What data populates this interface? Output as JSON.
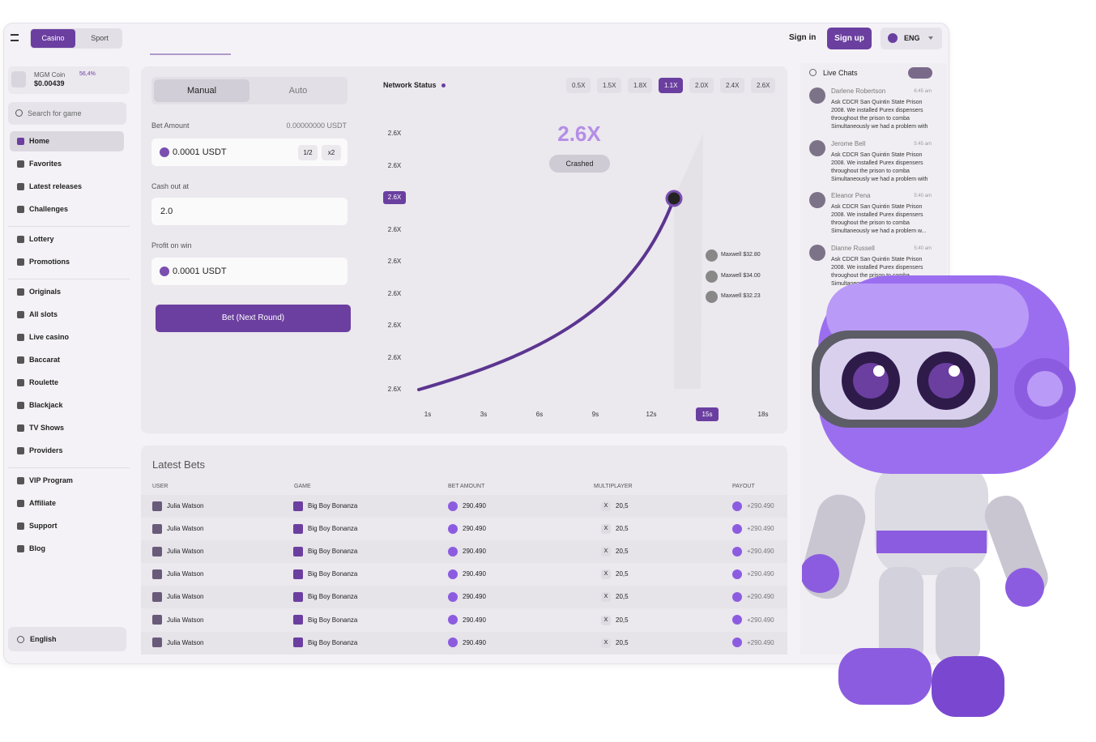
{
  "topbar": {
    "tabs": [
      "Casino",
      "Sport"
    ],
    "sign_in": "Sign in",
    "sign_up": "Sign up",
    "language": "ENG"
  },
  "sidebar": {
    "wallet": {
      "name": "MGM Coin",
      "change": "56,4%",
      "balance": "$0.00439"
    },
    "search_placeholder": "Search for game",
    "nav": [
      [
        "Home",
        "Favorites",
        "Latest releases",
        "Challenges"
      ],
      [
        "Lottery",
        "Promotions"
      ],
      [
        "Originals",
        "All slots",
        "Live casino",
        "Baccarat",
        "Roulette",
        "Blackjack",
        "TV Shows",
        "Providers"
      ],
      [
        "VIP Program",
        "Affiliate",
        "Support",
        "Blog"
      ]
    ],
    "language": "English"
  },
  "bet_form": {
    "tabs": [
      "Manual",
      "Auto"
    ],
    "bet_amount_label": "Bet Amount",
    "balance": "0.00000000 USDT",
    "bet_amount": "0.0001 USDT",
    "half": "1/2",
    "double": "x2",
    "cash_out_label": "Cash out at",
    "cash_out": "2.0",
    "profit_label": "Profit on win",
    "profit": "0.0001 USDT",
    "submit": "Bet (Next Round)"
  },
  "game": {
    "network_status": "Network Status",
    "multipliers": [
      "0.5X",
      "1.5X",
      "1.8X",
      "1.1X",
      "2.0X",
      "2.4X",
      "2.6X"
    ],
    "y_labels": [
      "2.6X",
      "2.6X",
      "2.6X",
      "2.6X",
      "2.6X",
      "2.6X",
      "2.6X",
      "2.6X",
      "2.6X"
    ],
    "x_labels": [
      "1s",
      "3s",
      "6s",
      "9s",
      "12s",
      "15s",
      "18s"
    ],
    "current": "2.6X",
    "status": "Crashed",
    "players": [
      "Maxwell $32.80",
      "Maxwell $34.00",
      "Maxwell $32.23"
    ]
  },
  "latest_bets": {
    "title": "Latest Bets",
    "columns": [
      "USER",
      "GAME",
      "BET AMOUNT",
      "MULTIPLAYER",
      "PAYOUT"
    ],
    "rows": [
      {
        "user": "Julia Watson",
        "game": "Big Boy Bonanza",
        "bet_amount": "290.490",
        "multiplier_badge": "X",
        "multiplier": "20,5",
        "payout": "+290.490"
      },
      {
        "user": "Julia Watson",
        "game": "Big Boy Bonanza",
        "bet_amount": "290.490",
        "multiplier_badge": "X",
        "multiplier": "20,5",
        "payout": "+290.490"
      },
      {
        "user": "Julia Watson",
        "game": "Big Boy Bonanza",
        "bet_amount": "290.490",
        "multiplier_badge": "X",
        "multiplier": "20,5",
        "payout": "+290.490"
      },
      {
        "user": "Julia Watson",
        "game": "Big Boy Bonanza",
        "bet_amount": "290.490",
        "multiplier_badge": "X",
        "multiplier": "20,5",
        "payout": "+290.490"
      },
      {
        "user": "Julia Watson",
        "game": "Big Boy Bonanza",
        "bet_amount": "290.490",
        "multiplier_badge": "X",
        "multiplier": "20,5",
        "payout": "+290.490"
      },
      {
        "user": "Julia Watson",
        "game": "Big Boy Bonanza",
        "bet_amount": "290.490",
        "multiplier_badge": "X",
        "multiplier": "20,5",
        "payout": "+290.490"
      },
      {
        "user": "Julia Watson",
        "game": "Big Boy Bonanza",
        "bet_amount": "290.490",
        "multiplier_badge": "X",
        "multiplier": "20,5",
        "payout": "+290.490"
      }
    ]
  },
  "live_chats": {
    "title": "Live Chats",
    "messages": [
      {
        "name": "Darlene Robertson",
        "time": "6:45 am",
        "text": "Ask CDCR San Quintin State Prison 2008. We installed Purex dispensers throughout the prison to comba Simultaneously we had a problem with p..."
      },
      {
        "name": "Jerome Bell",
        "time": "5:45 am",
        "text": "Ask CDCR San Quintin State Prison 2008. We installed Purex dispensers throughout the prison to comba Simultaneously we had a problem with p..."
      },
      {
        "name": "Eleanor Pena",
        "time": "5:40 am",
        "text": "Ask CDCR San Quintin State Prison 2008. We installed Purex dispensers throughout the prison to comba Simultaneously we had a problem w..."
      },
      {
        "name": "Dianne Russell",
        "time": "5:40 am",
        "text": "Ask CDCR San Quintin State Prison 2008. We installed Purex dispensers throughout the prison to comba Simultaneously..."
      }
    ]
  }
}
